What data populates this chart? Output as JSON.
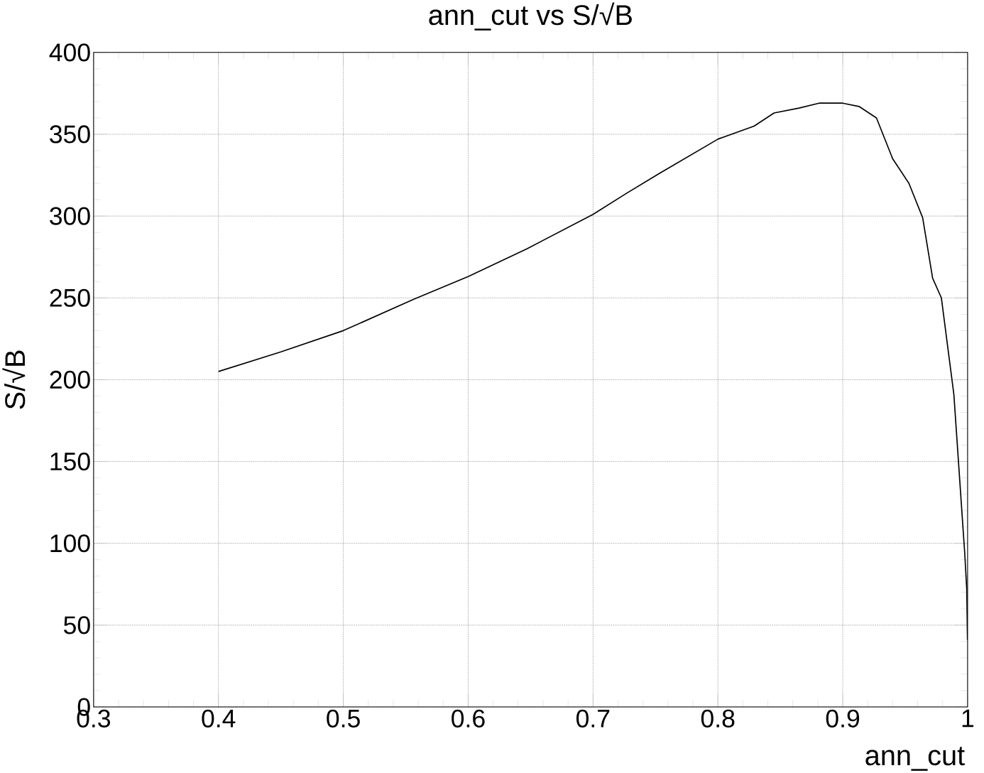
{
  "chart_data": {
    "type": "line",
    "title": "ann_cut vs S/√B",
    "xlabel": "ann_cut",
    "ylabel": "S/√B",
    "xlim": [
      0.3,
      1
    ],
    "ylim": [
      0,
      400
    ],
    "xticks": [
      0.3,
      0.4,
      0.5,
      0.6,
      0.7,
      0.8,
      0.9,
      1
    ],
    "yticks": [
      0,
      50,
      100,
      150,
      200,
      250,
      300,
      350,
      400
    ],
    "grid": true,
    "marker": "none",
    "line_style": "solid",
    "series": [
      {
        "color": "#000000",
        "x": [
          0.4,
          0.45,
          0.5,
          0.556,
          0.6,
          0.647,
          0.7,
          0.727,
          0.753,
          0.8,
          0.829,
          0.845,
          0.865,
          0.881,
          0.9,
          0.913,
          0.927,
          0.94,
          0.953,
          0.964,
          0.972,
          0.979,
          0.989,
          0.9977,
          0.9993,
          0.9999
        ],
        "values": [
          205,
          217,
          230,
          249,
          263,
          280,
          301,
          314,
          326,
          347,
          355,
          363,
          366,
          369,
          369,
          367,
          360,
          335,
          320,
          299,
          262,
          250,
          191,
          94,
          72,
          41
        ]
      }
    ]
  }
}
